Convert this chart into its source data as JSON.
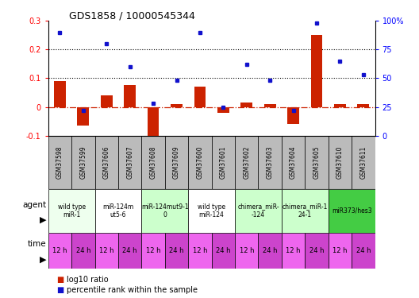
{
  "title": "GDS1858 / 10000545344",
  "samples": [
    "GSM37598",
    "GSM37599",
    "GSM37606",
    "GSM37607",
    "GSM37608",
    "GSM37609",
    "GSM37600",
    "GSM37601",
    "GSM37602",
    "GSM37603",
    "GSM37604",
    "GSM37605",
    "GSM37610",
    "GSM37611"
  ],
  "log10_ratio": [
    0.09,
    -0.065,
    0.04,
    0.075,
    -0.13,
    0.01,
    0.07,
    -0.02,
    0.015,
    0.01,
    -0.06,
    0.25,
    0.01,
    0.01
  ],
  "percentile_rank": [
    90,
    22,
    80,
    60,
    28,
    48,
    90,
    25,
    62,
    48,
    22,
    98,
    65,
    53
  ],
  "ylim_left": [
    -0.1,
    0.3
  ],
  "ylim_right": [
    0,
    100
  ],
  "bar_color": "#cc2200",
  "dot_color": "#1111cc",
  "agent_groups": [
    {
      "label": "wild type\nmiR-1",
      "cols": [
        0,
        1
      ],
      "color": "#eeffee"
    },
    {
      "label": "miR-124m\nut5-6",
      "cols": [
        2,
        3
      ],
      "color": "#ffffff"
    },
    {
      "label": "miR-124mut9-1\n0",
      "cols": [
        4,
        5
      ],
      "color": "#ccffcc"
    },
    {
      "label": "wild type\nmiR-124",
      "cols": [
        6,
        7
      ],
      "color": "#ffffff"
    },
    {
      "label": "chimera_miR-\n-124",
      "cols": [
        8,
        9
      ],
      "color": "#ccffcc"
    },
    {
      "label": "chimera_miR-1\n24-1",
      "cols": [
        10,
        11
      ],
      "color": "#ccffcc"
    },
    {
      "label": "miR373/hes3",
      "cols": [
        12,
        13
      ],
      "color": "#44cc44"
    }
  ],
  "time_labels": [
    "12 h",
    "24 h",
    "12 h",
    "24 h",
    "12 h",
    "24 h",
    "12 h",
    "24 h",
    "12 h",
    "24 h",
    "12 h",
    "24 h",
    "12 h",
    "24 h"
  ],
  "time_colors": [
    "#ee66ee",
    "#cc44cc"
  ],
  "sample_bg_color": "#bbbbbb",
  "legend_items": [
    {
      "label": "log10 ratio",
      "color": "#cc2200"
    },
    {
      "label": "percentile rank within the sample",
      "color": "#1111cc"
    }
  ]
}
